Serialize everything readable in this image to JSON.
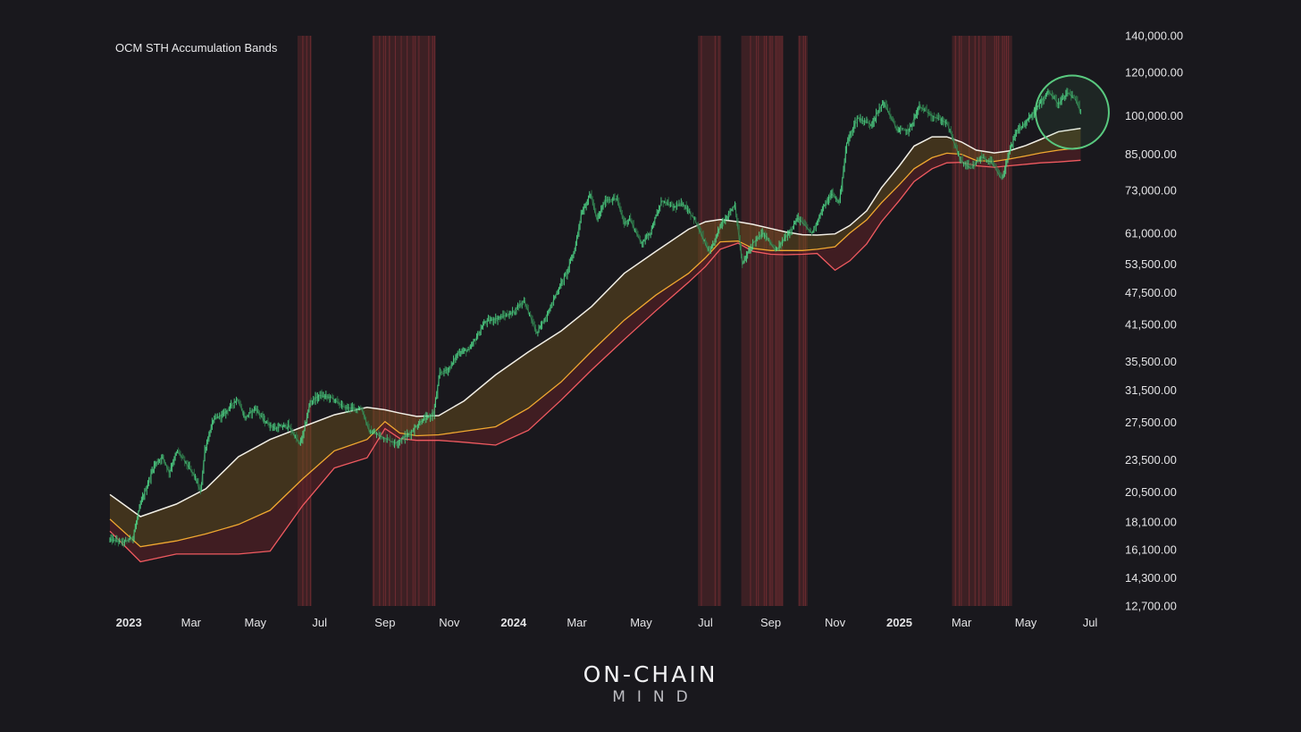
{
  "chart_data": {
    "type": "line",
    "title": "OCM STH Accumulation Bands",
    "y_scale": "log",
    "ylim": [
      12700,
      140000
    ],
    "grid": false,
    "y_ticks": [
      {
        "value": 140000,
        "label": "140,000.00"
      },
      {
        "value": 120000,
        "label": "120,000.00"
      },
      {
        "value": 100000,
        "label": "100,000.00"
      },
      {
        "value": 85000,
        "label": "85,000.00"
      },
      {
        "value": 73000,
        "label": "73,000.00"
      },
      {
        "value": 61000,
        "label": "61,000.00"
      },
      {
        "value": 53500,
        "label": "53,500.00"
      },
      {
        "value": 47500,
        "label": "47,500.00"
      },
      {
        "value": 41500,
        "label": "41,500.00"
      },
      {
        "value": 35500,
        "label": "35,500.00"
      },
      {
        "value": 31500,
        "label": "31,500.00"
      },
      {
        "value": 27500,
        "label": "27,500.00"
      },
      {
        "value": 23500,
        "label": "23,500.00"
      },
      {
        "value": 20500,
        "label": "20,500.00"
      },
      {
        "value": 18100,
        "label": "18,100.00"
      },
      {
        "value": 16100,
        "label": "16,100.00"
      },
      {
        "value": 14300,
        "label": "14,300.00"
      },
      {
        "value": 12700,
        "label": "12,700.00"
      }
    ],
    "x_ticks": [
      {
        "date": "2023-01-01",
        "label": "2023",
        "year": true
      },
      {
        "date": "2023-03-01",
        "label": "Mar"
      },
      {
        "date": "2023-05-01",
        "label": "May"
      },
      {
        "date": "2023-07-01",
        "label": "Jul"
      },
      {
        "date": "2023-09-01",
        "label": "Sep"
      },
      {
        "date": "2023-11-01",
        "label": "Nov"
      },
      {
        "date": "2024-01-01",
        "label": "2024",
        "year": true
      },
      {
        "date": "2024-03-01",
        "label": "Mar"
      },
      {
        "date": "2024-05-01",
        "label": "May"
      },
      {
        "date": "2024-07-01",
        "label": "Jul"
      },
      {
        "date": "2024-09-01",
        "label": "Sep"
      },
      {
        "date": "2024-11-01",
        "label": "Nov"
      },
      {
        "date": "2025-01-01",
        "label": "2025",
        "year": true
      },
      {
        "date": "2025-03-01",
        "label": "Mar"
      },
      {
        "date": "2025-05-01",
        "label": "May"
      },
      {
        "date": "2025-07-01",
        "label": "Jul"
      }
    ],
    "xlim": [
      "2022-12-14",
      "2025-07-01"
    ],
    "colors": {
      "price": "#4fd688",
      "upper": "#f2efe6",
      "middle": "#f0a830",
      "lower": "#f05a60",
      "band_upper_fill": "#6a4e1e",
      "band_lower_fill": "#5a2226",
      "highlight_zone": "#6b2a2e",
      "circle": "#59c97f"
    },
    "series": [
      {
        "role": "price",
        "x": [
          "2022-12-14",
          "2022-12-28",
          "2023-01-05",
          "2023-01-12",
          "2023-01-18",
          "2023-01-25",
          "2023-02-02",
          "2023-02-08",
          "2023-02-16",
          "2023-02-22",
          "2023-03-04",
          "2023-03-10",
          "2023-03-14",
          "2023-03-22",
          "2023-04-01",
          "2023-04-14",
          "2023-04-21",
          "2023-05-01",
          "2023-05-10",
          "2023-05-20",
          "2023-06-01",
          "2023-06-12",
          "2023-06-15",
          "2023-06-22",
          "2023-07-01",
          "2023-07-13",
          "2023-07-24",
          "2023-08-10",
          "2023-08-17",
          "2023-08-25",
          "2023-09-11",
          "2023-09-25",
          "2023-10-05",
          "2023-10-17",
          "2023-10-23",
          "2023-11-01",
          "2023-11-10",
          "2023-11-20",
          "2023-12-05",
          "2023-12-15",
          "2023-12-30",
          "2024-01-11",
          "2024-01-23",
          "2024-02-01",
          "2024-02-12",
          "2024-02-20",
          "2024-02-28",
          "2024-03-05",
          "2024-03-14",
          "2024-03-20",
          "2024-03-28",
          "2024-04-08",
          "2024-04-15",
          "2024-04-20",
          "2024-05-01",
          "2024-05-10",
          "2024-05-21",
          "2024-06-01",
          "2024-06-10",
          "2024-06-20",
          "2024-07-05",
          "2024-07-15",
          "2024-07-29",
          "2024-08-05",
          "2024-08-15",
          "2024-08-25",
          "2024-09-06",
          "2024-09-15",
          "2024-09-27",
          "2024-10-10",
          "2024-10-20",
          "2024-10-29",
          "2024-11-05",
          "2024-11-12",
          "2024-11-22",
          "2024-12-05",
          "2024-12-17",
          "2024-12-30",
          "2025-01-10",
          "2025-01-20",
          "2025-02-01",
          "2025-02-15",
          "2025-02-28",
          "2025-03-10",
          "2025-03-20",
          "2025-03-30",
          "2025-04-08",
          "2025-04-14",
          "2025-04-22",
          "2025-05-01",
          "2025-05-12",
          "2025-05-22",
          "2025-06-01",
          "2025-06-10",
          "2025-06-17",
          "2025-06-22"
        ],
        "y": [
          16800,
          16600,
          17000,
          19500,
          21000,
          23000,
          23800,
          22300,
          24400,
          23500,
          22000,
          20500,
          24500,
          27800,
          28500,
          30400,
          28000,
          29200,
          27600,
          26800,
          27200,
          25100,
          26000,
          30000,
          30800,
          30500,
          29300,
          29100,
          26500,
          26100,
          25200,
          26300,
          27600,
          28500,
          33800,
          34500,
          37000,
          37300,
          42000,
          42500,
          43500,
          46000,
          40000,
          43000,
          48000,
          51500,
          57000,
          66000,
          72000,
          64500,
          70000,
          70500,
          63500,
          65000,
          58500,
          61500,
          70000,
          68000,
          69000,
          65000,
          56000,
          63000,
          68800,
          53500,
          58500,
          61000,
          56500,
          60000,
          65000,
          61000,
          67500,
          72000,
          69500,
          89000,
          99000,
          96500,
          106000,
          94000,
          94000,
          104000,
          100000,
          97000,
          83000,
          80000,
          84000,
          82000,
          76500,
          84000,
          93500,
          97000,
          103500,
          111000,
          105000,
          110000,
          107000,
          101500
        ]
      },
      {
        "role": "upper_band",
        "x": [
          "2022-12-14",
          "2023-01-12",
          "2023-02-15",
          "2023-03-15",
          "2023-04-15",
          "2023-05-15",
          "2023-06-15",
          "2023-07-15",
          "2023-08-15",
          "2023-09-01",
          "2023-09-15",
          "2023-10-01",
          "2023-10-22",
          "2023-11-15",
          "2023-12-15",
          "2024-01-15",
          "2024-02-15",
          "2024-03-15",
          "2024-04-15",
          "2024-05-15",
          "2024-06-15",
          "2024-07-01",
          "2024-07-15",
          "2024-08-01",
          "2024-08-15",
          "2024-09-01",
          "2024-09-15",
          "2024-10-01",
          "2024-10-15",
          "2024-11-01",
          "2024-11-15",
          "2024-12-01",
          "2024-12-15",
          "2025-01-01",
          "2025-01-15",
          "2025-02-01",
          "2025-02-15",
          "2025-03-01",
          "2025-03-15",
          "2025-04-01",
          "2025-04-15",
          "2025-05-01",
          "2025-05-15",
          "2025-06-01",
          "2025-06-22"
        ],
        "y": [
          20300,
          18500,
          19500,
          20800,
          23800,
          25600,
          27000,
          28400,
          29300,
          29000,
          28600,
          28200,
          28300,
          30100,
          33600,
          37000,
          40400,
          44800,
          51500,
          56500,
          62000,
          64000,
          64600,
          64000,
          63300,
          62200,
          61300,
          60600,
          60500,
          60800,
          63000,
          67000,
          73800,
          81000,
          88000,
          91500,
          91500,
          89500,
          86500,
          85500,
          86200,
          88200,
          90500,
          93500,
          94800
        ]
      },
      {
        "role": "middle_band",
        "x": [
          "2022-12-14",
          "2023-01-12",
          "2023-02-15",
          "2023-03-15",
          "2023-04-15",
          "2023-05-15",
          "2023-06-15",
          "2023-07-15",
          "2023-08-15",
          "2023-09-01",
          "2023-09-15",
          "2023-10-01",
          "2023-10-22",
          "2023-11-15",
          "2023-12-15",
          "2024-01-15",
          "2024-02-15",
          "2024-03-15",
          "2024-04-15",
          "2024-05-15",
          "2024-06-15",
          "2024-07-01",
          "2024-07-15",
          "2024-08-01",
          "2024-08-15",
          "2024-09-01",
          "2024-09-15",
          "2024-10-01",
          "2024-10-15",
          "2024-11-01",
          "2024-11-15",
          "2024-12-01",
          "2024-12-15",
          "2025-01-01",
          "2025-01-15",
          "2025-02-01",
          "2025-02-15",
          "2025-03-01",
          "2025-03-15",
          "2025-04-01",
          "2025-04-15",
          "2025-05-01",
          "2025-05-15",
          "2025-06-01",
          "2025-06-22"
        ],
        "y": [
          18300,
          16300,
          16700,
          17200,
          17900,
          19000,
          21700,
          24400,
          25600,
          27600,
          26300,
          26000,
          26100,
          26500,
          27000,
          29200,
          32600,
          37100,
          42300,
          47000,
          51500,
          55000,
          58800,
          59000,
          57200,
          56700,
          56700,
          56700,
          57000,
          57600,
          61000,
          64500,
          69300,
          74800,
          80000,
          83800,
          85400,
          85000,
          82800,
          82500,
          83300,
          84400,
          85500,
          86500,
          87400
        ]
      },
      {
        "role": "lower_band",
        "x": [
          "2022-12-14",
          "2023-01-12",
          "2023-02-15",
          "2023-03-15",
          "2023-04-15",
          "2023-05-15",
          "2023-06-15",
          "2023-07-15",
          "2023-08-15",
          "2023-09-01",
          "2023-09-15",
          "2023-10-01",
          "2023-10-22",
          "2023-11-15",
          "2023-12-15",
          "2024-01-15",
          "2024-02-15",
          "2024-03-15",
          "2024-04-15",
          "2024-05-15",
          "2024-06-15",
          "2024-07-01",
          "2024-07-15",
          "2024-08-01",
          "2024-08-15",
          "2024-09-01",
          "2024-09-15",
          "2024-10-01",
          "2024-10-15",
          "2024-11-01",
          "2024-11-15",
          "2024-12-01",
          "2024-12-15",
          "2025-01-01",
          "2025-01-15",
          "2025-02-01",
          "2025-02-15",
          "2025-03-01",
          "2025-03-15",
          "2025-04-01",
          "2025-04-15",
          "2025-05-01",
          "2025-05-15",
          "2025-06-01",
          "2025-06-22"
        ],
        "y": [
          17400,
          15300,
          15800,
          15800,
          15800,
          16000,
          19400,
          22700,
          23700,
          26800,
          25700,
          25500,
          25500,
          25300,
          25000,
          26600,
          30200,
          34300,
          39000,
          44000,
          49600,
          53000,
          57000,
          58500,
          56500,
          55800,
          55700,
          55800,
          56000,
          52200,
          54300,
          58300,
          64000,
          70000,
          75800,
          80000,
          82000,
          82200,
          81000,
          80500,
          81000,
          81500,
          82000,
          82300,
          82900
        ]
      }
    ],
    "highlight_zones": [
      [
        "2023-06-10",
        "2023-06-23"
      ],
      [
        "2023-08-20",
        "2023-10-19"
      ],
      [
        "2024-06-24",
        "2024-07-16"
      ],
      [
        "2024-08-04",
        "2024-09-13"
      ],
      [
        "2024-09-27",
        "2024-10-06"
      ],
      [
        "2025-02-20",
        "2025-04-18"
      ]
    ],
    "annotation": {
      "type": "circle",
      "center": {
        "date": "2025-06-14",
        "value": 101500
      }
    }
  },
  "branding": {
    "logo_main": "ON-CHAIN",
    "logo_sub": "MIND"
  }
}
